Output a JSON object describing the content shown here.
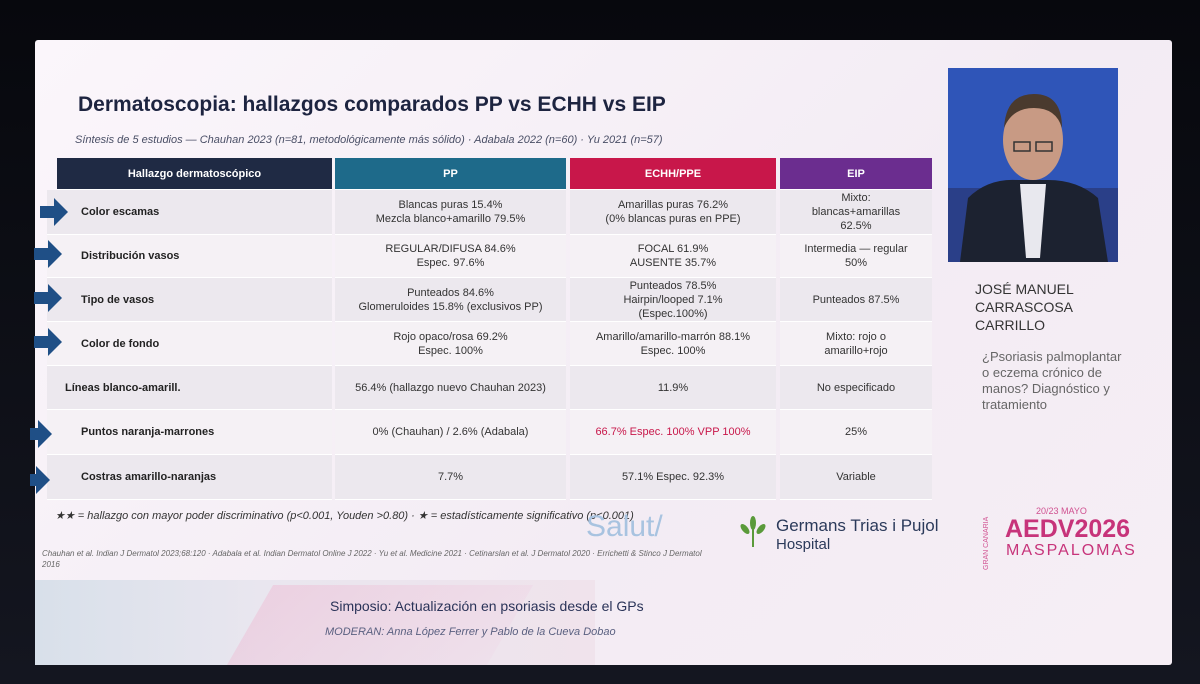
{
  "slide": {
    "title": "Dermatoscopia: hallazgos comparados PP vs ECHH vs EIP",
    "subtitle": "Síntesis de 5 estudios — Chauhan 2023 (n=81, metodológicamente más sólido) · Adabala 2022 (n=60) · Yu 2021 (n=57)",
    "table": {
      "header": [
        "Hallazgo dermatoscópico",
        "PP",
        "ECHH/PPE",
        "EIP"
      ],
      "rows": [
        [
          [
            "Color escamas"
          ],
          [
            "Blancas puras 15.4%",
            "Mezcla blanco+amarillo 79.5%"
          ],
          [
            "Amarillas puras 76.2%",
            "(0% blancas puras en PPE)"
          ],
          [
            "Mixto:",
            "blancas+amarillas",
            "62.5%"
          ]
        ],
        [
          [
            "Distribución vasos"
          ],
          [
            "REGULAR/DIFUSA 84.6%",
            "Espec. 97.6%"
          ],
          [
            "FOCAL 61.9%",
            "AUSENTE 35.7%"
          ],
          [
            "Intermedia — regular",
            "50%"
          ]
        ],
        [
          [
            "Tipo de vasos"
          ],
          [
            "Punteados 84.6%",
            "Glomeruloides 15.8% (exclusivos PP)"
          ],
          [
            "Punteados 78.5%",
            "Hairpin/looped 7.1%",
            "(Espec.100%)"
          ],
          [
            "Punteados 87.5%"
          ]
        ],
        [
          [
            "Color de fondo"
          ],
          [
            "Rojo opaco/rosa 69.2%",
            "Espec. 100%"
          ],
          [
            "Amarillo/amarillo-marrón 88.1%",
            "Espec. 100%"
          ],
          [
            "Mixto: rojo o",
            "amarillo+rojo"
          ]
        ],
        [
          [
            "Líneas blanco-amarill."
          ],
          [
            "56.4% (hallazgo nuevo Chauhan 2023)"
          ],
          [
            "11.9%"
          ],
          [
            "No especificado"
          ]
        ],
        [
          [
            "Puntos naranja-marrones"
          ],
          [
            "0% (Chauhan) / 2.6% (Adabala)"
          ],
          [
            "66.7%  Espec. 100%  VPP 100%"
          ],
          [
            "25%"
          ]
        ],
        [
          [
            "Costras amarillo-naranjas"
          ],
          [
            "7.7%"
          ],
          [
            "57.1%  Espec. 92.3%"
          ],
          [
            "Variable"
          ]
        ]
      ]
    },
    "legend_note": "★★ = hallazgo con mayor poder discriminativo (p<0.001, Youden >0.80) · ★ = estadísticamente significativo (p<0.001)",
    "references": [
      "Chauhan et al. Indian J Dermatol 2023;68:120 · Adabala et al. Indian Dermatol Online J 2022 · Yu et al. Medicine 2021 · Cetinarslan et al. J Dermatol 2020 · Errichetti & Stinco J Dermatol",
      "2016"
    ],
    "logos": {
      "salut": "Salut/",
      "hospital_name": "Germans Trias i Pujol",
      "hospital_word": "Hospital"
    },
    "event": {
      "dates": "20/23 MAYO",
      "place_vertical": "GRAN CANARIA",
      "brand": "AEDV2026",
      "city": "MASPALOMAS"
    }
  },
  "sidebar": {
    "speaker": [
      "JOSÉ MANUEL",
      "CARRASCOSA",
      "CARRILLO"
    ],
    "talk_title": [
      "¿Psoriasis palmoplantar",
      "o eczema crónico de",
      "manos? Diagnóstico y",
      "tratamiento"
    ]
  },
  "footer": {
    "session": "Simposio: Actualización en psoriasis desde el GPs",
    "moderators": "MODERAN: Anna López Ferrer y Pablo de la Cueva Dobao"
  }
}
